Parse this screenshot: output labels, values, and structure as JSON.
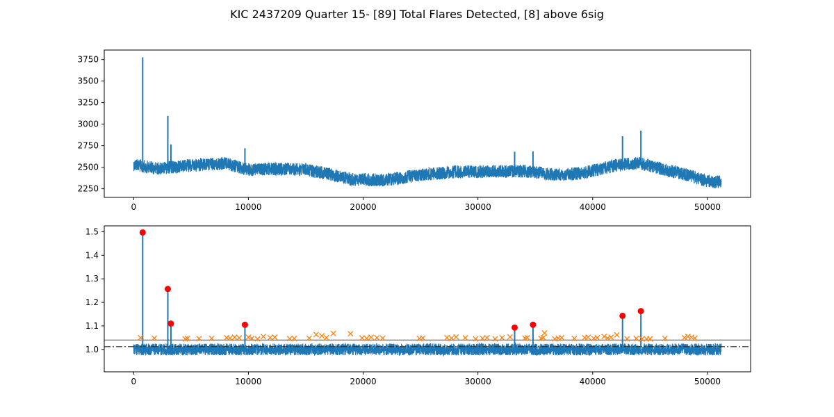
{
  "title": "KIC 2437209 Quarter 15- [89] Total Flares Detected, [8] above 6sig",
  "colors": {
    "series": "#1f77b4",
    "candidates": "#ff7f0e",
    "flares": "#ff0000",
    "threshold": "#808080",
    "median": "#000000"
  },
  "chart_data": [
    {
      "type": "line",
      "title": "",
      "xlabel": "",
      "ylabel": "",
      "xlim": [
        -2560,
        53760
      ],
      "ylim": [
        2150,
        3860
      ],
      "xticks": [
        0,
        10000,
        20000,
        30000,
        40000,
        50000
      ],
      "yticks": [
        2250,
        2500,
        2750,
        3000,
        3250,
        3500,
        3750
      ],
      "ytick_labels": [
        "2250",
        "2500",
        "2750",
        "3000",
        "3250",
        "3500",
        "3750"
      ],
      "grid": false,
      "series": [
        {
          "x": [
            0,
            2000,
            5000,
            8000,
            10000,
            12000,
            15000,
            17000,
            19000,
            22000,
            25000,
            28000,
            31000,
            34000,
            37000,
            39000,
            42000,
            44000,
            46000,
            48000,
            50000,
            51200
          ],
          "y": [
            2530,
            2485,
            2520,
            2545,
            2470,
            2480,
            2470,
            2420,
            2360,
            2350,
            2410,
            2445,
            2450,
            2455,
            2410,
            2430,
            2520,
            2550,
            2480,
            2420,
            2340,
            2330
          ],
          "band": 75
        }
      ],
      "spikes": [
        {
          "x": 790,
          "y": 3775
        },
        {
          "x": 2980,
          "y": 3095
        },
        {
          "x": 3250,
          "y": 2765
        },
        {
          "x": 9700,
          "y": 2720
        },
        {
          "x": 33200,
          "y": 2680
        },
        {
          "x": 34800,
          "y": 2685
        },
        {
          "x": 42600,
          "y": 2860
        },
        {
          "x": 44200,
          "y": 2925
        }
      ]
    },
    {
      "type": "line",
      "title": "",
      "xlabel": "",
      "ylabel": "",
      "xlim": [
        -2560,
        53760
      ],
      "ylim": [
        0.905,
        1.525
      ],
      "xticks": [
        0,
        10000,
        20000,
        30000,
        40000,
        50000
      ],
      "yticks": [
        1.0,
        1.1,
        1.2,
        1.3,
        1.4,
        1.5
      ],
      "ytick_labels": [
        "1.0",
        "1.1",
        "1.2",
        "1.3",
        "1.4",
        "1.5"
      ],
      "grid": false,
      "series": [
        {
          "x": [
            0,
            51200
          ],
          "y": [
            1.0,
            1.0
          ],
          "band": 0.025
        }
      ],
      "threshold_line": 1.04,
      "median_line": 1.012,
      "flares_above_6sig": [
        {
          "x": 790,
          "y": 1.497
        },
        {
          "x": 2980,
          "y": 1.257
        },
        {
          "x": 3250,
          "y": 1.11
        },
        {
          "x": 9700,
          "y": 1.105
        },
        {
          "x": 33200,
          "y": 1.093
        },
        {
          "x": 34800,
          "y": 1.105
        },
        {
          "x": 42600,
          "y": 1.143
        },
        {
          "x": 44200,
          "y": 1.163
        }
      ],
      "flare_candidates": [
        {
          "x": 600,
          "y": 1.05
        },
        {
          "x": 1800,
          "y": 1.048
        },
        {
          "x": 4500,
          "y": 1.045
        },
        {
          "x": 4700,
          "y": 1.047
        },
        {
          "x": 5700,
          "y": 1.046
        },
        {
          "x": 6800,
          "y": 1.047
        },
        {
          "x": 8100,
          "y": 1.05
        },
        {
          "x": 8400,
          "y": 1.048
        },
        {
          "x": 8800,
          "y": 1.052
        },
        {
          "x": 9200,
          "y": 1.049
        },
        {
          "x": 10000,
          "y": 1.052
        },
        {
          "x": 10300,
          "y": 1.047
        },
        {
          "x": 10800,
          "y": 1.045
        },
        {
          "x": 11300,
          "y": 1.055
        },
        {
          "x": 11900,
          "y": 1.05
        },
        {
          "x": 12300,
          "y": 1.052
        },
        {
          "x": 13600,
          "y": 1.046
        },
        {
          "x": 14000,
          "y": 1.047
        },
        {
          "x": 15300,
          "y": 1.048
        },
        {
          "x": 15900,
          "y": 1.063
        },
        {
          "x": 16400,
          "y": 1.058
        },
        {
          "x": 16800,
          "y": 1.05
        },
        {
          "x": 17400,
          "y": 1.068
        },
        {
          "x": 18900,
          "y": 1.067
        },
        {
          "x": 19900,
          "y": 1.049
        },
        {
          "x": 20300,
          "y": 1.047
        },
        {
          "x": 20700,
          "y": 1.052
        },
        {
          "x": 21200,
          "y": 1.05
        },
        {
          "x": 21700,
          "y": 1.048
        },
        {
          "x": 24900,
          "y": 1.047
        },
        {
          "x": 25200,
          "y": 1.048
        },
        {
          "x": 27300,
          "y": 1.05
        },
        {
          "x": 27700,
          "y": 1.048
        },
        {
          "x": 28100,
          "y": 1.053
        },
        {
          "x": 28900,
          "y": 1.049
        },
        {
          "x": 29800,
          "y": 1.045
        },
        {
          "x": 30400,
          "y": 1.047
        },
        {
          "x": 30800,
          "y": 1.05
        },
        {
          "x": 31500,
          "y": 1.045
        },
        {
          "x": 32100,
          "y": 1.05
        },
        {
          "x": 32800,
          "y": 1.053
        },
        {
          "x": 34100,
          "y": 1.048
        },
        {
          "x": 34300,
          "y": 1.05
        },
        {
          "x": 35500,
          "y": 1.047
        },
        {
          "x": 35700,
          "y": 1.05
        },
        {
          "x": 35800,
          "y": 1.07
        },
        {
          "x": 36700,
          "y": 1.045
        },
        {
          "x": 37000,
          "y": 1.048
        },
        {
          "x": 37300,
          "y": 1.05
        },
        {
          "x": 38400,
          "y": 1.047
        },
        {
          "x": 39300,
          "y": 1.05
        },
        {
          "x": 39600,
          "y": 1.052
        },
        {
          "x": 40100,
          "y": 1.047
        },
        {
          "x": 40400,
          "y": 1.05
        },
        {
          "x": 41000,
          "y": 1.055
        },
        {
          "x": 41300,
          "y": 1.048
        },
        {
          "x": 41600,
          "y": 1.052
        },
        {
          "x": 42100,
          "y": 1.062
        },
        {
          "x": 43000,
          "y": 1.045
        },
        {
          "x": 43800,
          "y": 1.047
        },
        {
          "x": 44300,
          "y": 1.045
        },
        {
          "x": 44700,
          "y": 1.045
        },
        {
          "x": 45000,
          "y": 1.045
        },
        {
          "x": 46300,
          "y": 1.047
        },
        {
          "x": 48000,
          "y": 1.05
        },
        {
          "x": 48300,
          "y": 1.055
        },
        {
          "x": 48600,
          "y": 1.052
        },
        {
          "x": 48900,
          "y": 1.048
        }
      ]
    }
  ]
}
